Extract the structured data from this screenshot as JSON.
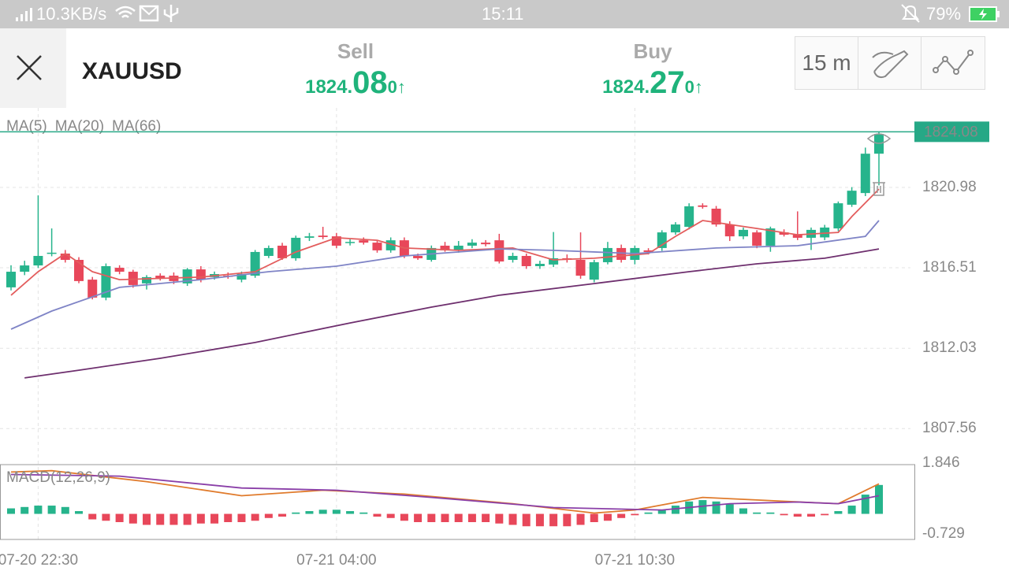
{
  "status_bar": {
    "speed": "10.3KB/s",
    "time": "15:11",
    "battery": "79%"
  },
  "header": {
    "symbol": "XAUUSD",
    "sell": {
      "label": "Sell",
      "price_main": "1824.",
      "price_big": "08",
      "price_small": "0",
      "arrow": "↑"
    },
    "buy": {
      "label": "Buy",
      "price_main": "1824.",
      "price_big": "27",
      "price_small": "0",
      "arrow": "↑"
    },
    "interval": "15 m"
  },
  "chart_data": [
    {
      "type": "candlestick",
      "up_color": "#26b48c",
      "down_color": "#e8475a",
      "ylim": [
        1805.64,
        1825.41
      ],
      "yticks": [
        1820.98,
        1816.51,
        1812.03,
        1807.56
      ],
      "xticks": [
        {
          "value": 2,
          "label": "07-20 22:30"
        },
        {
          "value": 24,
          "label": "07-21 04:00"
        },
        {
          "value": 46,
          "label": "07-21 10:30"
        }
      ],
      "current_price": 1824.08,
      "current_color": "#26a886",
      "candles": [
        [
          1815.42,
          1816.65,
          1815.25,
          1816.29
        ],
        [
          1816.29,
          1816.9,
          1816.1,
          1816.64
        ],
        [
          1816.64,
          1820.54,
          1816.5,
          1817.17
        ],
        [
          1817.3,
          1818.7,
          1817.15,
          1817.35
        ],
        [
          1817.3,
          1817.5,
          1816.8,
          1816.95
        ],
        [
          1816.95,
          1817.1,
          1815.65,
          1815.77
        ],
        [
          1815.85,
          1816.0,
          1814.75,
          1814.85
        ],
        [
          1814.85,
          1816.75,
          1814.7,
          1816.6
        ],
        [
          1816.51,
          1816.65,
          1816.15,
          1816.29
        ],
        [
          1816.29,
          1816.4,
          1815.4,
          1815.55
        ],
        [
          1815.64,
          1816.1,
          1815.3,
          1815.99
        ],
        [
          1816.07,
          1816.2,
          1815.8,
          1815.94
        ],
        [
          1816.07,
          1816.25,
          1815.6,
          1815.77
        ],
        [
          1815.64,
          1816.5,
          1815.5,
          1816.42
        ],
        [
          1816.42,
          1816.6,
          1815.7,
          1815.85
        ],
        [
          1815.99,
          1816.3,
          1815.85,
          1816.16
        ],
        [
          1816.07,
          1816.25,
          1815.9,
          1816.05
        ],
        [
          1815.85,
          1816.3,
          1815.7,
          1816.16
        ],
        [
          1816.07,
          1817.5,
          1815.95,
          1817.39
        ],
        [
          1817.17,
          1817.75,
          1817.05,
          1817.61
        ],
        [
          1817.74,
          1817.9,
          1816.95,
          1817.04
        ],
        [
          1817.04,
          1818.3,
          1816.9,
          1818.18
        ],
        [
          1818.18,
          1818.45,
          1818.0,
          1818.26
        ],
        [
          1818.3,
          1818.79,
          1818.1,
          1818.22
        ],
        [
          1818.26,
          1818.45,
          1817.6,
          1817.74
        ],
        [
          1817.91,
          1818.1,
          1817.75,
          1817.95
        ],
        [
          1818.04,
          1818.2,
          1817.8,
          1817.91
        ],
        [
          1817.91,
          1818.05,
          1817.35,
          1817.48
        ],
        [
          1817.48,
          1818.2,
          1817.35,
          1818.04
        ],
        [
          1818.04,
          1818.2,
          1817.05,
          1817.17
        ],
        [
          1817.17,
          1817.3,
          1816.95,
          1817.04
        ],
        [
          1816.95,
          1817.75,
          1816.85,
          1817.61
        ],
        [
          1817.74,
          1817.95,
          1817.4,
          1817.48
        ],
        [
          1817.48,
          1818.0,
          1817.35,
          1817.74
        ],
        [
          1817.74,
          1818.1,
          1817.6,
          1817.91
        ],
        [
          1817.91,
          1818.05,
          1817.7,
          1817.82
        ],
        [
          1818.04,
          1818.4,
          1816.75,
          1816.86
        ],
        [
          1816.95,
          1817.35,
          1816.8,
          1817.17
        ],
        [
          1817.17,
          1817.3,
          1816.45,
          1816.6
        ],
        [
          1816.6,
          1816.9,
          1816.45,
          1816.73
        ],
        [
          1816.69,
          1818.5,
          1816.55,
          1817.04
        ],
        [
          1817.04,
          1817.25,
          1816.8,
          1816.95
        ],
        [
          1816.95,
          1818.48,
          1815.9,
          1816.07
        ],
        [
          1815.85,
          1816.95,
          1815.7,
          1816.82
        ],
        [
          1816.82,
          1817.95,
          1816.7,
          1817.61
        ],
        [
          1817.61,
          1817.8,
          1816.8,
          1816.95
        ],
        [
          1816.95,
          1817.75,
          1816.7,
          1817.61
        ],
        [
          1817.48,
          1817.6,
          1817.25,
          1817.39
        ],
        [
          1817.61,
          1818.6,
          1817.45,
          1818.48
        ],
        [
          1818.48,
          1819.05,
          1818.35,
          1818.92
        ],
        [
          1818.79,
          1820.1,
          1818.65,
          1819.93
        ],
        [
          1819.98,
          1820.1,
          1819.8,
          1819.9
        ],
        [
          1819.8,
          1819.95,
          1818.8,
          1818.92
        ],
        [
          1818.92,
          1819.1,
          1818.0,
          1818.26
        ],
        [
          1818.26,
          1818.75,
          1818.1,
          1818.62
        ],
        [
          1818.48,
          1818.6,
          1817.6,
          1817.74
        ],
        [
          1817.74,
          1818.8,
          1817.4,
          1818.7
        ],
        [
          1818.48,
          1818.65,
          1818.25,
          1818.35
        ],
        [
          1818.35,
          1819.65,
          1818.05,
          1818.18
        ],
        [
          1818.18,
          1818.75,
          1817.5,
          1818.62
        ],
        [
          1818.2,
          1818.9,
          1818.05,
          1818.75
        ],
        [
          1818.7,
          1820.2,
          1818.55,
          1820.1
        ],
        [
          1820.02,
          1821.0,
          1819.9,
          1820.8
        ],
        [
          1820.67,
          1823.2,
          1820.5,
          1822.86
        ],
        [
          1822.86,
          1824.1,
          1821.1,
          1823.96
        ]
      ],
      "series": [
        {
          "name": "MA(5)",
          "color": "#e35d5d",
          "x": [
            0,
            2,
            4,
            6,
            8,
            14,
            18,
            21,
            24,
            27,
            29,
            33,
            37,
            40,
            43,
            47,
            49,
            51,
            55,
            58,
            61,
            62,
            64
          ],
          "values": [
            1814.98,
            1816.29,
            1817.3,
            1816.29,
            1815.85,
            1815.99,
            1816.29,
            1817.39,
            1818.18,
            1818.04,
            1817.61,
            1817.48,
            1817.61,
            1816.95,
            1817.04,
            1817.3,
            1818.26,
            1819.14,
            1818.7,
            1818.35,
            1818.48,
            1819.36,
            1820.89
          ]
        },
        {
          "name": "MA(20)",
          "color": "#7f84c6",
          "x": [
            0,
            3,
            8,
            14,
            19,
            24,
            29,
            36,
            40,
            46,
            52,
            58,
            63,
            64
          ],
          "values": [
            1813.09,
            1814.1,
            1815.42,
            1815.85,
            1816.29,
            1816.6,
            1817.17,
            1817.56,
            1817.48,
            1817.3,
            1817.61,
            1817.74,
            1818.26,
            1819.14
          ]
        },
        {
          "name": "MA(66)",
          "color": "#6e2f6e",
          "x": [
            1,
            5,
            11,
            18,
            25,
            31,
            36,
            43,
            50,
            55,
            60,
            64
          ],
          "values": [
            1810.38,
            1810.81,
            1811.47,
            1812.35,
            1813.44,
            1814.32,
            1814.98,
            1815.63,
            1816.29,
            1816.73,
            1817.04,
            1817.56
          ]
        }
      ]
    },
    {
      "type": "bar",
      "title": "MACD(12,26,9)",
      "ylim": [
        -0.929,
        1.789
      ],
      "yticks": [
        1.846,
        -0.729
      ],
      "up_color": "#26b48c",
      "down_color": "#e8475a",
      "values": [
        0.2,
        0.25,
        0.3,
        0.3,
        0.25,
        0.1,
        -0.2,
        -0.25,
        -0.3,
        -0.35,
        -0.4,
        -0.4,
        -0.4,
        -0.4,
        -0.35,
        -0.35,
        -0.3,
        -0.3,
        -0.25,
        -0.15,
        -0.1,
        0.05,
        0.1,
        0.15,
        0.15,
        0.1,
        0.05,
        -0.1,
        -0.15,
        -0.25,
        -0.3,
        -0.3,
        -0.3,
        -0.3,
        -0.3,
        -0.3,
        -0.35,
        -0.4,
        -0.45,
        -0.45,
        -0.45,
        -0.45,
        -0.4,
        -0.3,
        -0.25,
        -0.15,
        -0.05,
        0.05,
        0.15,
        0.3,
        0.45,
        0.5,
        0.45,
        0.35,
        0.2,
        0.05,
        0.05,
        -0.05,
        -0.1,
        -0.1,
        -0.05,
        0.1,
        0.3,
        0.7,
        1.05
      ],
      "series": [
        {
          "color": "#e07b2c",
          "x": [
            0,
            3,
            10,
            17,
            23,
            29,
            37,
            43,
            46,
            51,
            57,
            61,
            64
          ],
          "values": [
            1.52,
            1.57,
            1.17,
            0.66,
            0.86,
            0.72,
            0.37,
            0.03,
            0.14,
            0.6,
            0.46,
            0.37,
            1.09
          ]
        },
        {
          "color": "#8a3fa8",
          "x": [
            0,
            8,
            17,
            24,
            31,
            40,
            48,
            53,
            58,
            61,
            64
          ],
          "values": [
            1.43,
            1.37,
            0.94,
            0.86,
            0.6,
            0.23,
            0.14,
            0.37,
            0.43,
            0.37,
            0.66
          ]
        }
      ]
    }
  ]
}
